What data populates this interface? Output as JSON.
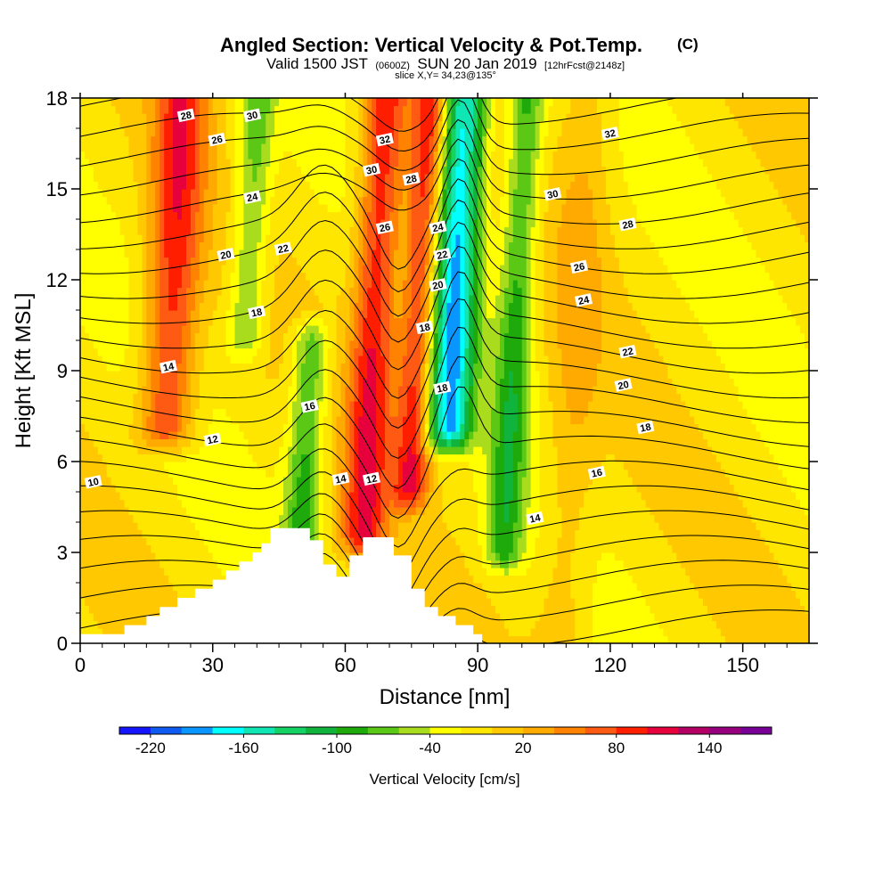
{
  "title": {
    "main": "Angled Section: Vertical Velocity & Pot.Temp.",
    "unit": "(C)",
    "valid_prefix": "Valid 1500 JST",
    "valid_zulu": "(0600Z)",
    "valid_date": "SUN 20 Jan 2019",
    "forecast": "[12hrFcst@2148z]",
    "slice": "slice X,Y= 34,23@135°"
  },
  "chart_data": {
    "type": "heatmap",
    "xlabel": "Distance [nm]",
    "ylabel": "Height [Kft MSL]",
    "xlim": [
      0,
      165
    ],
    "ylim": [
      0,
      18
    ],
    "x_ticks": [
      0,
      30,
      60,
      90,
      120,
      150
    ],
    "y_ticks": [
      0,
      3,
      6,
      9,
      12,
      15,
      18
    ],
    "background_velocity": -10,
    "velocity_features": [
      {
        "x": 20,
        "y_min": 7,
        "y_max": 18,
        "width": 6,
        "value": 90
      },
      {
        "x": 37,
        "y_min": 10,
        "y_max": 18,
        "width": 4,
        "value": -70
      },
      {
        "x": 52,
        "y_min": 3.5,
        "y_max": 10,
        "width": 4,
        "value": -90
      },
      {
        "x": 66,
        "y_min": 3.5,
        "y_max": 18,
        "width": 5,
        "value": 100
      },
      {
        "x": 76,
        "y_min": 5,
        "y_max": 18,
        "width": 4,
        "value": 95
      },
      {
        "x": 84,
        "y_min": 7,
        "y_max": 18,
        "width": 5,
        "value": -180
      },
      {
        "x": 98,
        "y_min": 3,
        "y_max": 18,
        "width": 4,
        "value": -90
      },
      {
        "x": 112,
        "y_min": 0,
        "y_max": 18,
        "width": 6,
        "value": 20
      }
    ],
    "terrain": [
      [
        0,
        0.3
      ],
      [
        10,
        0.3
      ],
      [
        10,
        0.6
      ],
      [
        15,
        0.6
      ],
      [
        15,
        0.9
      ],
      [
        18,
        0.9
      ],
      [
        18,
        1.2
      ],
      [
        22,
        1.2
      ],
      [
        22,
        1.5
      ],
      [
        26,
        1.5
      ],
      [
        26,
        1.8
      ],
      [
        30,
        1.8
      ],
      [
        30,
        2.1
      ],
      [
        33,
        2.1
      ],
      [
        33,
        2.4
      ],
      [
        36,
        2.4
      ],
      [
        36,
        2.7
      ],
      [
        39,
        2.7
      ],
      [
        39,
        3.0
      ],
      [
        41,
        3.0
      ],
      [
        41,
        3.3
      ],
      [
        43,
        3.3
      ],
      [
        43,
        3.6
      ],
      [
        43,
        3.8
      ],
      [
        52,
        3.8
      ],
      [
        52,
        3.4
      ],
      [
        55,
        3.4
      ],
      [
        55,
        2.6
      ],
      [
        58,
        2.6
      ],
      [
        58,
        2.2
      ],
      [
        61,
        2.2
      ],
      [
        61,
        2.9
      ],
      [
        64,
        2.9
      ],
      [
        64,
        3.5
      ],
      [
        71,
        3.5
      ],
      [
        71,
        2.9
      ],
      [
        75,
        2.9
      ],
      [
        75,
        1.8
      ],
      [
        78,
        1.8
      ],
      [
        78,
        1.2
      ],
      [
        81,
        1.2
      ],
      [
        81,
        0.9
      ],
      [
        85,
        0.9
      ],
      [
        85,
        0.6
      ],
      [
        89,
        0.6
      ],
      [
        89,
        0.3
      ],
      [
        91,
        0.3
      ],
      [
        91,
        0
      ],
      [
        0,
        0
      ]
    ],
    "contour_labels": [
      {
        "text": "28",
        "x": 24,
        "y": 17.4
      },
      {
        "text": "30",
        "x": 39,
        "y": 17.4
      },
      {
        "text": "26",
        "x": 31,
        "y": 16.6
      },
      {
        "text": "32",
        "x": 69,
        "y": 16.6
      },
      {
        "text": "32",
        "x": 120,
        "y": 16.8
      },
      {
        "text": "30",
        "x": 66,
        "y": 15.6
      },
      {
        "text": "28",
        "x": 75,
        "y": 15.3
      },
      {
        "text": "24",
        "x": 39,
        "y": 14.7
      },
      {
        "text": "30",
        "x": 107,
        "y": 14.8
      },
      {
        "text": "26",
        "x": 69,
        "y": 13.7
      },
      {
        "text": "24",
        "x": 81,
        "y": 13.7
      },
      {
        "text": "28",
        "x": 124,
        "y": 13.8
      },
      {
        "text": "22",
        "x": 82,
        "y": 12.8
      },
      {
        "text": "20",
        "x": 33,
        "y": 12.8
      },
      {
        "text": "22",
        "x": 46,
        "y": 13.0
      },
      {
        "text": "26",
        "x": 113,
        "y": 12.4
      },
      {
        "text": "20",
        "x": 81,
        "y": 11.8
      },
      {
        "text": "24",
        "x": 114,
        "y": 11.3
      },
      {
        "text": "18",
        "x": 40,
        "y": 10.9
      },
      {
        "text": "18",
        "x": 78,
        "y": 10.4
      },
      {
        "text": "14",
        "x": 20,
        "y": 9.1
      },
      {
        "text": "22",
        "x": 124,
        "y": 9.6
      },
      {
        "text": "20",
        "x": 123,
        "y": 8.5
      },
      {
        "text": "18",
        "x": 82,
        "y": 8.4
      },
      {
        "text": "16",
        "x": 52,
        "y": 7.8
      },
      {
        "text": "18",
        "x": 128,
        "y": 7.1
      },
      {
        "text": "12",
        "x": 30,
        "y": 6.7
      },
      {
        "text": "16",
        "x": 117,
        "y": 5.6
      },
      {
        "text": "14",
        "x": 59,
        "y": 5.4
      },
      {
        "text": "12",
        "x": 66,
        "y": 5.4
      },
      {
        "text": "10",
        "x": 3,
        "y": 5.3
      },
      {
        "text": "14",
        "x": 103,
        "y": 4.1
      }
    ],
    "colorbar": {
      "label": "Vertical Velocity [cm/s]",
      "tick_labels": [
        "-220",
        "-160",
        "-100",
        "-40",
        "20",
        "80",
        "140"
      ],
      "colors": [
        "#1414ff",
        "#0f5af0",
        "#0a96ff",
        "#00ffff",
        "#10e6b4",
        "#14d264",
        "#10b43c",
        "#1eaa0a",
        "#5ac814",
        "#aadc1e",
        "#ffff00",
        "#ffe600",
        "#ffc800",
        "#ffaa00",
        "#ff8200",
        "#ff5a14",
        "#ff1e00",
        "#e6003c",
        "#b40064",
        "#96007e",
        "#780096"
      ]
    }
  }
}
